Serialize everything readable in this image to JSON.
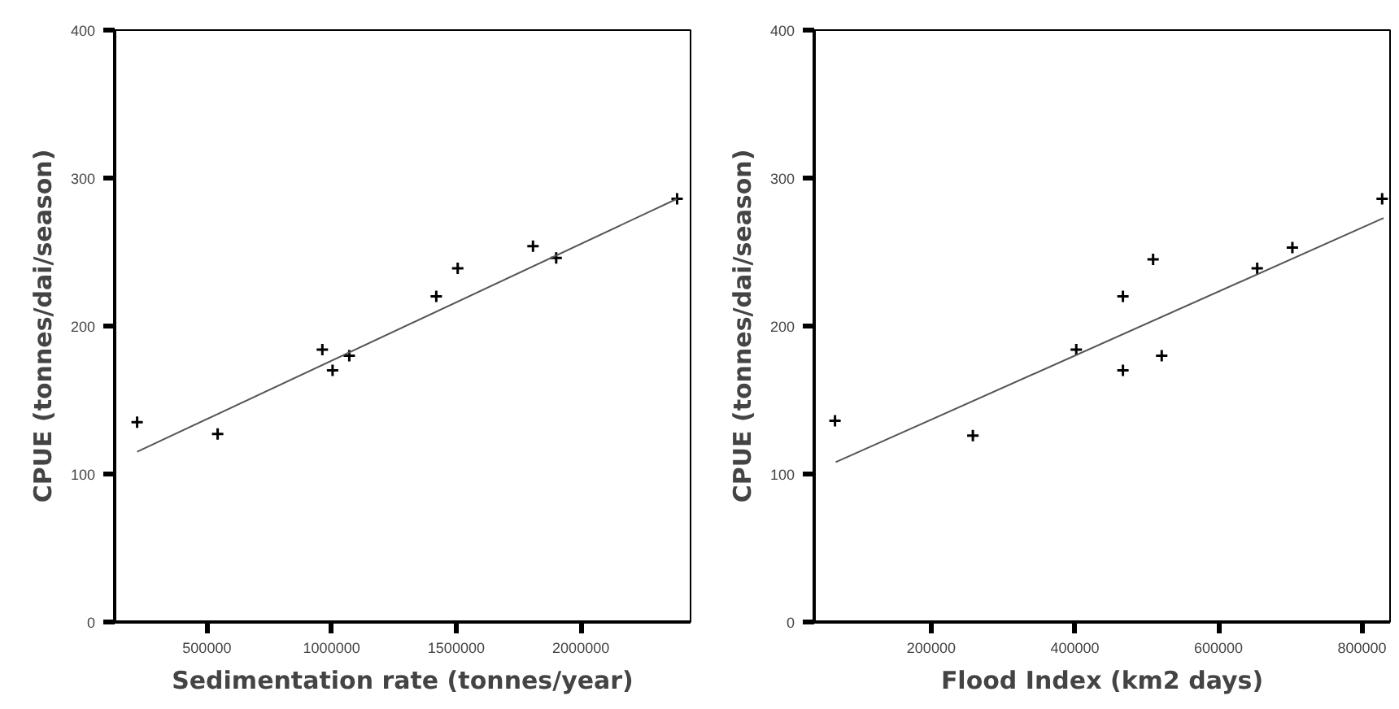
{
  "chart_data": [
    {
      "type": "scatter",
      "xlabel": "Sedimentation rate (tonnes/year)",
      "ylabel": "CPUE (tonnes/dai/season)",
      "xlim": [
        130000,
        2440000
      ],
      "ylim": [
        0,
        400
      ],
      "xticks": [
        500000,
        1000000,
        1500000,
        2000000
      ],
      "yticks": [
        0,
        100,
        200,
        300,
        400
      ],
      "grid": false,
      "series": [
        {
          "marker": "cross",
          "color": "#000000",
          "x": [
            220000,
            543000,
            963000,
            1004000,
            1071000,
            1420000,
            1506000,
            1808000,
            1901000,
            2386000
          ],
          "values": [
            135,
            127,
            184,
            170,
            180,
            220,
            239,
            254,
            246,
            286
          ]
        },
        {
          "type": "line",
          "marker": "none",
          "color": "#555555",
          "line_style": "solid",
          "x": [
            220000,
            2386000
          ],
          "values": [
            115,
            286
          ]
        }
      ]
    },
    {
      "type": "scatter",
      "xlabel": "Flood Index (km2 days)",
      "ylabel": "CPUE (tonnes/dai/season)",
      "xlim": [
        37000,
        839000
      ],
      "ylim": [
        0,
        400
      ],
      "xticks": [
        200000,
        400000,
        600000,
        800000
      ],
      "yticks": [
        0,
        100,
        200,
        300,
        400
      ],
      "grid": false,
      "series": [
        {
          "marker": "cross",
          "color": "#000000",
          "x": [
            66000,
            258000,
            402000,
            467000,
            467000,
            509000,
            521000,
            654000,
            703000,
            828000
          ],
          "values": [
            136,
            126,
            184,
            220,
            170,
            245,
            180,
            239,
            253,
            286
          ]
        },
        {
          "type": "line",
          "marker": "none",
          "color": "#555555",
          "line_style": "solid",
          "x": [
            67000,
            830000
          ],
          "values": [
            108,
            273
          ]
        }
      ]
    }
  ]
}
